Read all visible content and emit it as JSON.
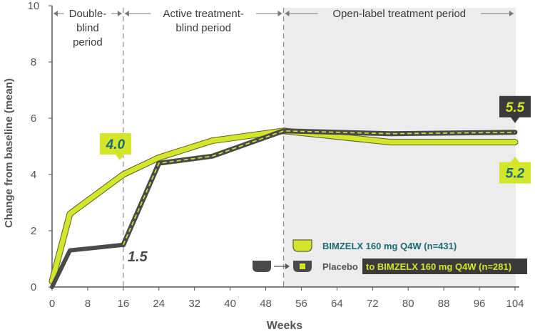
{
  "chart_data": {
    "type": "line",
    "xlabel": "Weeks",
    "ylabel": "Change from baseline (mean)",
    "x_ticks": [
      0,
      8,
      16,
      24,
      32,
      40,
      48,
      56,
      64,
      72,
      80,
      88,
      96,
      104
    ],
    "y_ticks": [
      0,
      2,
      4,
      6,
      8,
      10
    ],
    "xlim": [
      0,
      104
    ],
    "ylim": [
      0,
      10
    ],
    "periods": [
      {
        "label_lines": [
          "Double-",
          "blind",
          "period"
        ],
        "start": 0,
        "end": 16,
        "shaded": false
      },
      {
        "label_lines": [
          "Active treatment-",
          "blind period"
        ],
        "start": 16,
        "end": 52,
        "shaded": false
      },
      {
        "label_lines": [
          "Open-label treatment period"
        ],
        "start": 52,
        "end": 104,
        "shaded": true
      }
    ],
    "series": [
      {
        "name": "BIMZELX 160 mg Q4W (n=431)",
        "color": "#d4e62c",
        "points": [
          [
            0,
            0.2
          ],
          [
            4,
            2.6
          ],
          [
            16,
            4.0
          ],
          [
            24,
            4.6
          ],
          [
            36,
            5.2
          ],
          [
            52,
            5.55
          ],
          [
            76,
            5.15
          ],
          [
            104,
            5.15
          ]
        ]
      },
      {
        "name": "Placebo",
        "color": "#4a4a4a",
        "points": [
          [
            0,
            0.0
          ],
          [
            4,
            1.3
          ],
          [
            16,
            1.5
          ]
        ]
      },
      {
        "name": "Placebo to BIMZELX 160 mg Q4W (n=281)",
        "color": "#4a4a4a",
        "dash_color": "#d4e62c",
        "points": [
          [
            16,
            1.5
          ],
          [
            24,
            4.4
          ],
          [
            36,
            4.65
          ],
          [
            52,
            5.55
          ],
          [
            76,
            5.45
          ],
          [
            104,
            5.5
          ]
        ]
      }
    ],
    "annotations": [
      {
        "text": "4.0",
        "x": 16,
        "y": 4.0,
        "style": "lime-box"
      },
      {
        "text": "1.5",
        "x": 16,
        "y": 1.5,
        "style": "plain-dark"
      },
      {
        "text": "5.5",
        "x": 104,
        "y": 5.5,
        "style": "dark-box"
      },
      {
        "text": "5.2",
        "x": 104,
        "y": 5.15,
        "style": "lime-box"
      }
    ],
    "legend": {
      "position": "bottom-right",
      "entries": [
        {
          "label": "BIMZELX 160 mg Q4W (n=431)"
        },
        {
          "label_prefix": "Placebo",
          "label_highlight": "to BIMZELX 160 mg Q4W (n=281)"
        }
      ]
    }
  },
  "colors": {
    "lime": "#d4e62c",
    "dark": "#4a4a4a",
    "teal": "#1a6b73",
    "axis": "#555555",
    "shade": "#ececec"
  }
}
